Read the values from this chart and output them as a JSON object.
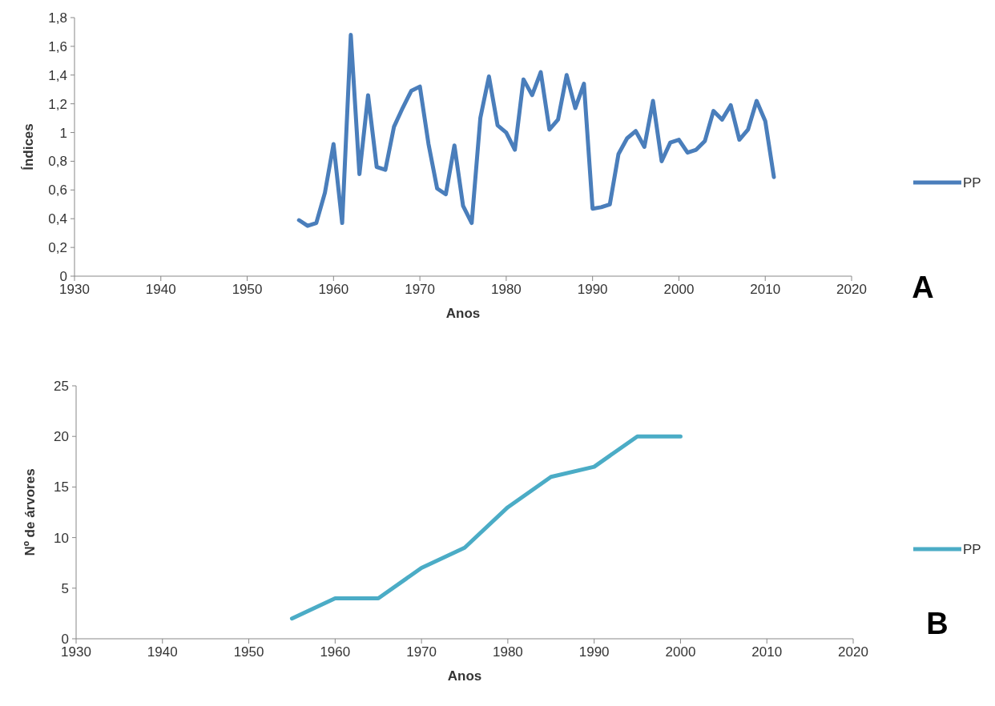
{
  "chart_data": [
    {
      "type": "line",
      "xlabel": "Anos",
      "ylabel": "Índices",
      "annotations": [
        "A"
      ],
      "legend": "right",
      "grid": false,
      "x": [
        1956,
        1957,
        1958,
        1959,
        1960,
        1961,
        1962,
        1963,
        1964,
        1965,
        1966,
        1967,
        1968,
        1969,
        1970,
        1971,
        1972,
        1973,
        1974,
        1975,
        1976,
        1977,
        1978,
        1979,
        1980,
        1981,
        1982,
        1983,
        1984,
        1985,
        1986,
        1987,
        1988,
        1989,
        1990,
        1991,
        1992,
        1993,
        1994,
        1995,
        1996,
        1997,
        1998,
        1999,
        2000,
        2001,
        2002,
        2003,
        2004,
        2005,
        2006,
        2007,
        2008,
        2009,
        2010,
        2011
      ],
      "series": [
        {
          "name": "PP",
          "color": "#4a7ebb",
          "values": [
            0.39,
            0.35,
            0.37,
            0.58,
            0.92,
            0.37,
            1.68,
            0.71,
            1.26,
            0.76,
            0.74,
            1.04,
            1.17,
            1.29,
            1.32,
            0.92,
            0.61,
            0.57,
            0.91,
            0.49,
            0.37,
            1.1,
            1.39,
            1.05,
            1.0,
            0.88,
            1.37,
            1.26,
            1.42,
            1.02,
            1.09,
            1.4,
            1.17,
            1.34,
            0.47,
            0.48,
            0.5,
            0.85,
            0.96,
            1.01,
            0.9,
            1.22,
            0.8,
            0.93,
            0.95,
            0.86,
            0.88,
            0.94,
            1.15,
            1.09,
            1.19,
            0.95,
            1.02,
            1.22,
            1.08,
            0.69
          ]
        }
      ],
      "xlim": [
        1930,
        2020
      ],
      "xticks": [
        1930,
        1940,
        1950,
        1960,
        1970,
        1980,
        1990,
        2000,
        2010,
        2020
      ],
      "ylim": [
        0,
        1.8
      ],
      "yticks": [
        0,
        {
          "value": 0.2,
          "label": "0,2"
        },
        {
          "value": 0.4,
          "label": "0,4"
        },
        {
          "value": 0.6,
          "label": "0,6"
        },
        {
          "value": 0.8,
          "label": "0,8"
        },
        1,
        {
          "value": 1.2,
          "label": "1,2"
        },
        {
          "value": 1.4,
          "label": "1,4"
        },
        {
          "value": 1.6,
          "label": "1,6"
        },
        {
          "value": 1.8,
          "label": "1,8"
        }
      ]
    },
    {
      "type": "line",
      "xlabel": "Anos",
      "ylabel": "Nº de árvores",
      "annotations": [
        "B"
      ],
      "legend": "right",
      "grid": false,
      "x": [
        1955,
        1960,
        1965,
        1970,
        1975,
        1980,
        1985,
        1990,
        1995,
        2000
      ],
      "series": [
        {
          "name": "PP",
          "color": "#4bacc6",
          "values": [
            2,
            4,
            4,
            7,
            9,
            13,
            16,
            17,
            20,
            20
          ]
        }
      ],
      "xlim": [
        1930,
        2020
      ],
      "xticks": [
        1930,
        1940,
        1950,
        1960,
        1970,
        1980,
        1990,
        2000,
        2010,
        2020
      ],
      "ylim": [
        0,
        25
      ],
      "yticks": [
        0,
        5,
        10,
        15,
        20,
        25
      ]
    }
  ]
}
